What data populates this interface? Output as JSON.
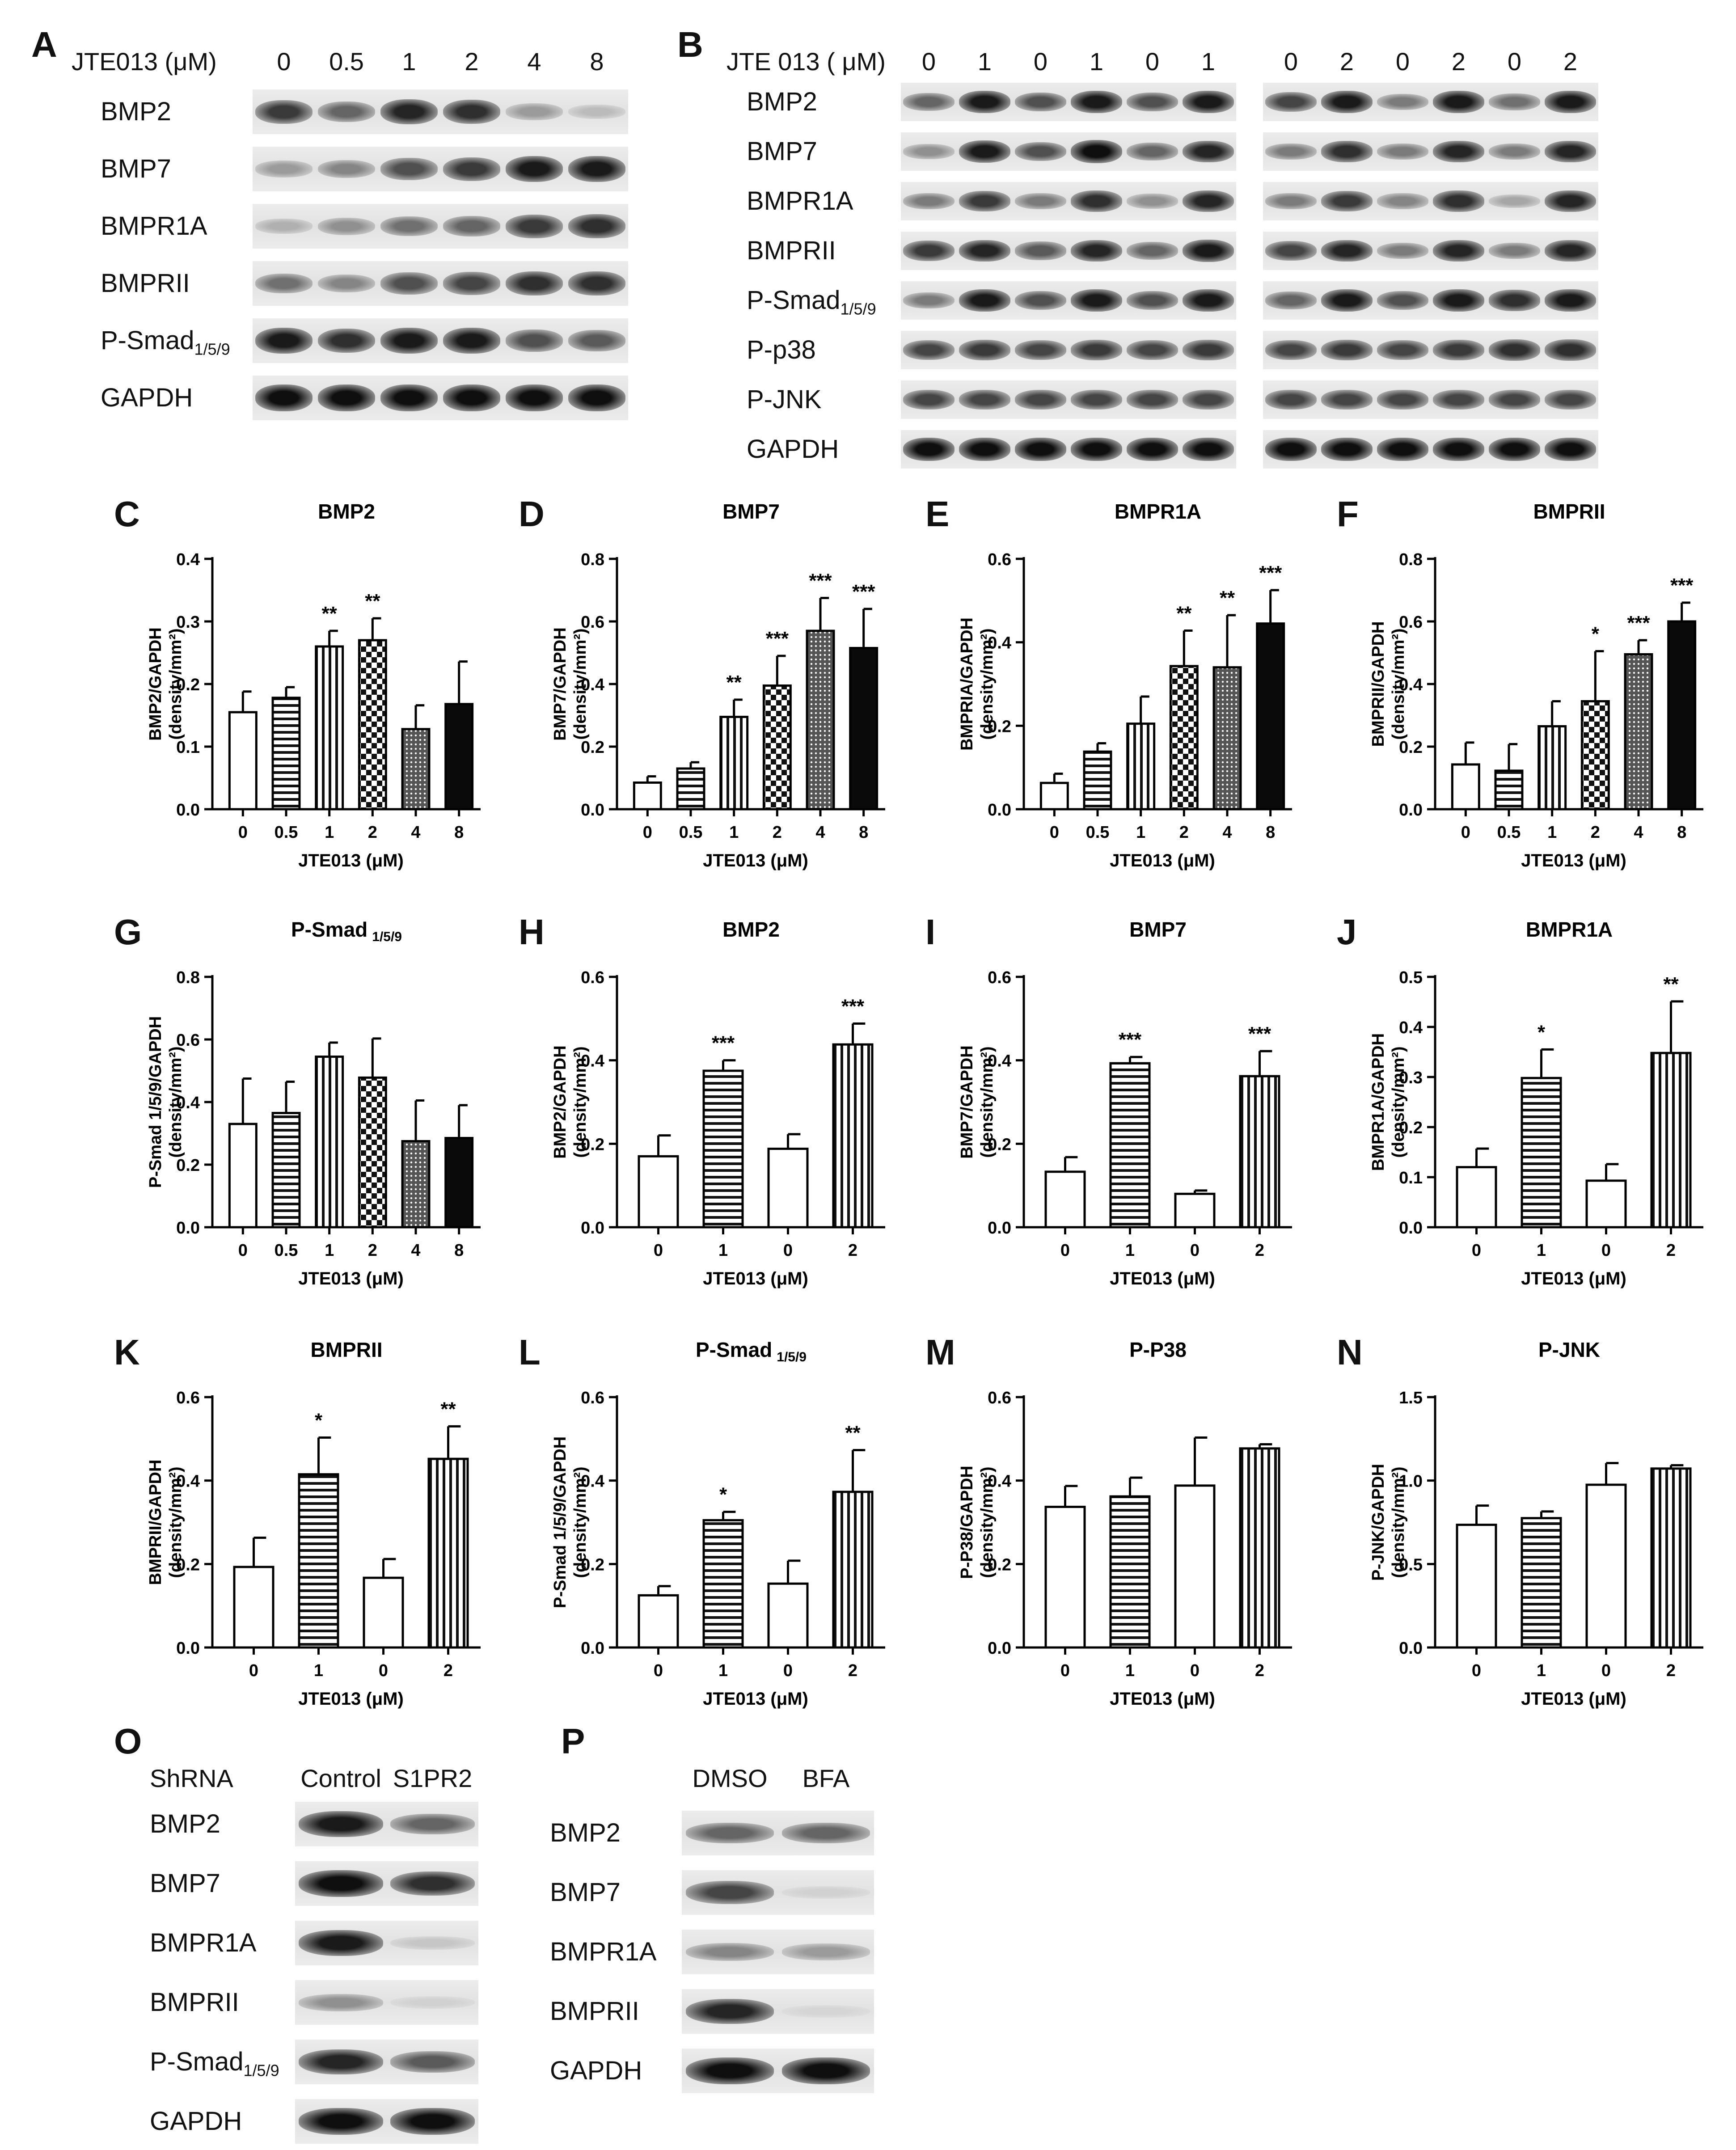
{
  "panel_letters": [
    "A",
    "B",
    "C",
    "D",
    "E",
    "F",
    "G",
    "H",
    "I",
    "J",
    "K",
    "L",
    "M",
    "N",
    "O",
    "P"
  ],
  "blots": {
    "A": {
      "letter": "A",
      "header_label": "JTE013 (μM)",
      "lanes": [
        "0",
        "0.5",
        "1",
        "2",
        "4",
        "8"
      ],
      "rows": [
        {
          "label": "BMP2",
          "intensity": [
            0.8,
            0.6,
            0.9,
            0.85,
            0.35,
            0.2
          ]
        },
        {
          "label": "BMP7",
          "intensity": [
            0.35,
            0.45,
            0.7,
            0.8,
            0.95,
            0.95
          ]
        },
        {
          "label": "BMPR1A",
          "intensity": [
            0.25,
            0.4,
            0.55,
            0.6,
            0.8,
            0.85
          ]
        },
        {
          "label": "BMPRII",
          "intensity": [
            0.55,
            0.45,
            0.7,
            0.75,
            0.85,
            0.85
          ]
        },
        {
          "label": "P-Smad",
          "sub": "1/5/9",
          "intensity": [
            0.95,
            0.85,
            0.95,
            0.95,
            0.7,
            0.65
          ]
        },
        {
          "label": "GAPDH",
          "intensity": [
            1,
            1,
            1,
            1,
            1,
            1
          ]
        }
      ]
    },
    "B": {
      "letter": "B",
      "header_label": "JTE 013 ( μM)",
      "lanes": [
        "0",
        "1",
        "0",
        "1",
        "0",
        "1",
        "0",
        "2",
        "0",
        "2",
        "0",
        "2"
      ],
      "rows": [
        {
          "label": "BMP2",
          "intensity": [
            0.6,
            0.95,
            0.7,
            0.95,
            0.7,
            0.95,
            0.75,
            0.95,
            0.5,
            0.95,
            0.55,
            0.95
          ]
        },
        {
          "label": "BMP7",
          "intensity": [
            0.4,
            0.95,
            0.7,
            1,
            0.6,
            0.9,
            0.5,
            0.85,
            0.5,
            0.9,
            0.5,
            0.9
          ]
        },
        {
          "label": "BMPR1A",
          "intensity": [
            0.5,
            0.8,
            0.5,
            0.85,
            0.4,
            0.9,
            0.5,
            0.8,
            0.45,
            0.85,
            0.3,
            0.9
          ]
        },
        {
          "label": "BMPRII",
          "intensity": [
            0.8,
            0.9,
            0.65,
            0.9,
            0.6,
            0.95,
            0.75,
            0.9,
            0.5,
            0.9,
            0.5,
            0.9
          ]
        },
        {
          "label": "P-Smad",
          "sub": "1/5/9",
          "intensity": [
            0.5,
            0.95,
            0.7,
            0.95,
            0.7,
            0.95,
            0.6,
            0.95,
            0.7,
            0.95,
            0.85,
            0.95
          ]
        },
        {
          "label": "P-p38",
          "intensity": [
            0.75,
            0.8,
            0.75,
            0.8,
            0.75,
            0.8,
            0.75,
            0.8,
            0.75,
            0.8,
            0.85,
            0.85
          ]
        },
        {
          "label": "P-JNK",
          "intensity": [
            0.75,
            0.75,
            0.75,
            0.75,
            0.75,
            0.75,
            0.75,
            0.75,
            0.75,
            0.75,
            0.75,
            0.75
          ]
        },
        {
          "label": "GAPDH",
          "intensity": [
            1,
            1,
            1,
            1,
            1,
            1,
            1,
            1,
            1,
            1,
            1,
            1
          ]
        }
      ]
    },
    "O": {
      "letter": "O",
      "header_label": "ShRNA",
      "lanes": [
        "Control",
        "S1PR2"
      ],
      "rows": [
        {
          "label": "BMP2",
          "intensity": [
            0.95,
            0.6
          ]
        },
        {
          "label": "BMP7",
          "intensity": [
            1,
            0.85
          ]
        },
        {
          "label": "BMPR1A",
          "intensity": [
            0.95,
            0.15
          ]
        },
        {
          "label": "BMPRII",
          "intensity": [
            0.4,
            0.1
          ]
        },
        {
          "label": "P-Smad",
          "sub": "1/5/9",
          "intensity": [
            0.9,
            0.65
          ]
        },
        {
          "label": "GAPDH",
          "intensity": [
            1,
            1
          ]
        }
      ]
    },
    "P": {
      "letter": "P",
      "header_label": "",
      "lanes": [
        "DMSO",
        "BFA"
      ],
      "rows": [
        {
          "label": "BMP2",
          "intensity": [
            0.6,
            0.6
          ]
        },
        {
          "label": "BMP7",
          "intensity": [
            0.75,
            0.1
          ]
        },
        {
          "label": "BMPR1A",
          "intensity": [
            0.45,
            0.35
          ]
        },
        {
          "label": "BMPRII",
          "intensity": [
            0.9,
            0.08
          ]
        },
        {
          "label": "GAPDH",
          "intensity": [
            1,
            1
          ]
        }
      ]
    }
  },
  "chart_data": [
    {
      "panel": "C",
      "type": "bar",
      "title": "BMP2",
      "ylabel": "BMP2/GAPDH",
      "ylabel2": "(density/mm²)",
      "xlabel": "JTE013 (μM)",
      "categories": [
        "0",
        "0.5",
        "1",
        "2",
        "4",
        "8"
      ],
      "values": [
        0.155,
        0.178,
        0.26,
        0.27,
        0.128,
        0.168
      ],
      "errors": [
        0.033,
        0.017,
        0.025,
        0.035,
        0.038,
        0.068
      ],
      "sig": [
        "",
        "",
        "**",
        "**",
        "",
        ""
      ],
      "ylim": [
        0,
        0.4
      ],
      "ticks": [
        0.0,
        0.1,
        0.2,
        0.3,
        0.4
      ],
      "tick_labels": [
        "0.0",
        "0.1",
        "0.2",
        "0.3",
        "0.4"
      ],
      "patterns": [
        "white",
        "hstripe",
        "vstripe",
        "checker",
        "dots",
        "black"
      ]
    },
    {
      "panel": "D",
      "type": "bar",
      "title": "BMP7",
      "ylabel": "BMP7/GAPDH",
      "ylabel2": "(density/mm²)",
      "xlabel": "JTE013 (μM)",
      "categories": [
        "0",
        "0.5",
        "1",
        "2",
        "4",
        "8"
      ],
      "values": [
        0.085,
        0.13,
        0.295,
        0.395,
        0.57,
        0.515
      ],
      "errors": [
        0.02,
        0.02,
        0.055,
        0.095,
        0.105,
        0.125
      ],
      "sig": [
        "",
        "",
        "**",
        "***",
        "***",
        "***"
      ],
      "ylim": [
        0,
        0.8
      ],
      "ticks": [
        0.0,
        0.2,
        0.4,
        0.6,
        0.8
      ],
      "tick_labels": [
        "0.0",
        "0.2",
        "0.4",
        "0.6",
        "0.8"
      ],
      "patterns": [
        "white",
        "hstripe",
        "vstripe",
        "checker",
        "dots",
        "black"
      ]
    },
    {
      "panel": "E",
      "type": "bar",
      "title": "BMPR1A",
      "ylabel": "BMPRIA/GAPDH",
      "ylabel2": "(density/mm²)",
      "xlabel": "JTE013 (μM)",
      "categories": [
        "0",
        "0.5",
        "1",
        "2",
        "4",
        "8"
      ],
      "values": [
        0.063,
        0.138,
        0.205,
        0.343,
        0.34,
        0.445
      ],
      "errors": [
        0.022,
        0.02,
        0.065,
        0.085,
        0.125,
        0.08
      ],
      "sig": [
        "",
        "",
        "",
        "**",
        "**",
        "***"
      ],
      "ylim": [
        0,
        0.6
      ],
      "ticks": [
        0.0,
        0.2,
        0.4,
        0.6
      ],
      "tick_labels": [
        "0.0",
        "0.2",
        "0.4",
        "0.6"
      ],
      "patterns": [
        "white",
        "hstripe",
        "vstripe",
        "checker",
        "dots",
        "black"
      ]
    },
    {
      "panel": "F",
      "type": "bar",
      "title": "BMPRII",
      "ylabel": "BMPRII/GAPDH",
      "ylabel2": "(density/mm²)",
      "xlabel": "JTE013 (μM)",
      "categories": [
        "0",
        "0.5",
        "1",
        "2",
        "4",
        "8"
      ],
      "values": [
        0.143,
        0.123,
        0.265,
        0.345,
        0.495,
        0.6
      ],
      "errors": [
        0.07,
        0.085,
        0.08,
        0.16,
        0.045,
        0.06
      ],
      "sig": [
        "",
        "",
        "",
        "*",
        "***",
        "***"
      ],
      "ylim": [
        0,
        0.8
      ],
      "ticks": [
        0.0,
        0.2,
        0.4,
        0.6,
        0.8
      ],
      "tick_labels": [
        "0.0",
        "0.2",
        "0.4",
        "0.6",
        "0.8"
      ],
      "patterns": [
        "white",
        "hstripe",
        "vstripe",
        "checker",
        "dots",
        "black"
      ]
    },
    {
      "panel": "G",
      "type": "bar",
      "title": "P-Smad",
      "title_sub": "1/5/9",
      "ylabel": "P-Smad 1/5/9/GAPDH",
      "ylabel2": "(density/mm²)",
      "xlabel": "JTE013 (μM)",
      "categories": [
        "0",
        "0.5",
        "1",
        "2",
        "4",
        "8"
      ],
      "values": [
        0.33,
        0.365,
        0.545,
        0.478,
        0.275,
        0.285
      ],
      "errors": [
        0.145,
        0.1,
        0.045,
        0.125,
        0.13,
        0.105
      ],
      "sig": [
        "",
        "",
        "",
        "",
        "",
        ""
      ],
      "ylim": [
        0,
        0.8
      ],
      "ticks": [
        0.0,
        0.2,
        0.4,
        0.6,
        0.8
      ],
      "tick_labels": [
        "0.0",
        "0.2",
        "0.4",
        "0.6",
        "0.8"
      ],
      "patterns": [
        "white",
        "hstripe",
        "vstripe",
        "checker",
        "dots",
        "black"
      ]
    },
    {
      "panel": "H",
      "type": "bar",
      "title": "BMP2",
      "ylabel": "BMP2/GAPDH",
      "ylabel2": "(density/mm²)",
      "xlabel": "JTE013 (μM)",
      "categories": [
        "0",
        "1",
        "0",
        "2"
      ],
      "values": [
        0.17,
        0.375,
        0.188,
        0.438
      ],
      "errors": [
        0.05,
        0.025,
        0.035,
        0.05
      ],
      "sig": [
        "",
        "***",
        "",
        "***"
      ],
      "ylim": [
        0,
        0.6
      ],
      "ticks": [
        0.0,
        0.2,
        0.4,
        0.6
      ],
      "tick_labels": [
        "0.0",
        "0.2",
        "0.4",
        "0.6"
      ],
      "patterns": [
        "white",
        "hstripe",
        "white",
        "vstripe"
      ]
    },
    {
      "panel": "I",
      "type": "bar",
      "title": "BMP7",
      "ylabel": "BMP7/GAPDH",
      "ylabel2": "(density/mm²)",
      "xlabel": "JTE013 (μM)",
      "categories": [
        "0",
        "1",
        "0",
        "2"
      ],
      "values": [
        0.133,
        0.393,
        0.08,
        0.362
      ],
      "errors": [
        0.035,
        0.015,
        0.008,
        0.06
      ],
      "sig": [
        "",
        "***",
        "",
        "***"
      ],
      "ylim": [
        0,
        0.6
      ],
      "ticks": [
        0.0,
        0.2,
        0.4,
        0.6
      ],
      "tick_labels": [
        "0.0",
        "0.2",
        "0.4",
        "0.6"
      ],
      "patterns": [
        "white",
        "hstripe",
        "white",
        "vstripe"
      ]
    },
    {
      "panel": "J",
      "type": "bar",
      "title": "BMPR1A",
      "ylabel": "BMPR1A/GAPDH",
      "ylabel2": "(density/mm²)",
      "xlabel": "JTE013 (μM)",
      "categories": [
        "0",
        "1",
        "0",
        "2"
      ],
      "values": [
        0.12,
        0.298,
        0.093,
        0.348
      ],
      "errors": [
        0.037,
        0.057,
        0.033,
        0.103
      ],
      "sig": [
        "",
        "*",
        "",
        "**"
      ],
      "ylim": [
        0,
        0.5
      ],
      "ticks": [
        0.0,
        0.1,
        0.2,
        0.3,
        0.4,
        0.5
      ],
      "tick_labels": [
        "0.0",
        "0.1",
        "0.2",
        "0.3",
        "0.4",
        "0.5"
      ],
      "patterns": [
        "white",
        "hstripe",
        "white",
        "vstripe"
      ]
    },
    {
      "panel": "K",
      "type": "bar",
      "title": "BMPRII",
      "ylabel": "BMPRII/GAPDH",
      "ylabel2": "(density/mm²)",
      "xlabel": "JTE013 (μM)",
      "categories": [
        "0",
        "1",
        "0",
        "2"
      ],
      "values": [
        0.193,
        0.415,
        0.167,
        0.452
      ],
      "errors": [
        0.07,
        0.088,
        0.045,
        0.078
      ],
      "sig": [
        "",
        "*",
        "",
        "**"
      ],
      "ylim": [
        0,
        0.6
      ],
      "ticks": [
        0.0,
        0.2,
        0.4,
        0.6
      ],
      "tick_labels": [
        "0.0",
        "0.2",
        "0.4",
        "0.6"
      ],
      "patterns": [
        "white",
        "hstripe",
        "white",
        "vstripe"
      ]
    },
    {
      "panel": "L",
      "type": "bar",
      "title": "P-Smad",
      "title_sub": "1/5/9",
      "ylabel": "P-Smad 1/5/9/GAPDH",
      "ylabel2": "(density/mm²)",
      "xlabel": "JTE013 (μM)",
      "categories": [
        "0",
        "1",
        "0",
        "2"
      ],
      "values": [
        0.125,
        0.305,
        0.153,
        0.373
      ],
      "errors": [
        0.022,
        0.02,
        0.055,
        0.1
      ],
      "sig": [
        "",
        "*",
        "",
        "**"
      ],
      "ylim": [
        0,
        0.6
      ],
      "ticks": [
        0.0,
        0.2,
        0.4,
        0.6
      ],
      "tick_labels": [
        "0.0",
        "0.2",
        "0.4",
        "0.6"
      ],
      "patterns": [
        "white",
        "hstripe",
        "white",
        "vstripe"
      ]
    },
    {
      "panel": "M",
      "type": "bar",
      "title": "P-P38",
      "ylabel": "P-P38/GAPDH",
      "ylabel2": "(density/mm²)",
      "xlabel": "JTE013 (μM)",
      "categories": [
        "0",
        "1",
        "0",
        "2"
      ],
      "values": [
        0.337,
        0.362,
        0.388,
        0.477
      ],
      "errors": [
        0.05,
        0.045,
        0.115,
        0.01
      ],
      "sig": [
        "",
        "",
        "",
        ""
      ],
      "ylim": [
        0,
        0.6
      ],
      "ticks": [
        0.0,
        0.2,
        0.4,
        0.6
      ],
      "tick_labels": [
        "0.0",
        "0.2",
        "0.4",
        "0.6"
      ],
      "patterns": [
        "white",
        "hstripe",
        "white",
        "vstripe"
      ]
    },
    {
      "panel": "N",
      "type": "bar",
      "title": "P-JNK",
      "ylabel": "P-JNK/GAPDH",
      "ylabel2": "(density/mm²)",
      "xlabel": "JTE013 (μM)",
      "categories": [
        "0",
        "1",
        "0",
        "2"
      ],
      "values": [
        0.735,
        0.775,
        0.975,
        1.072
      ],
      "errors": [
        0.115,
        0.04,
        0.13,
        0.02
      ],
      "sig": [
        "",
        "",
        "",
        ""
      ],
      "ylim": [
        0,
        1.5
      ],
      "ticks": [
        0.0,
        0.5,
        1.0,
        1.5
      ],
      "tick_labels": [
        "0.0",
        "0.5",
        "1.0",
        "1.5"
      ],
      "patterns": [
        "white",
        "hstripe",
        "white",
        "vstripe"
      ]
    }
  ]
}
